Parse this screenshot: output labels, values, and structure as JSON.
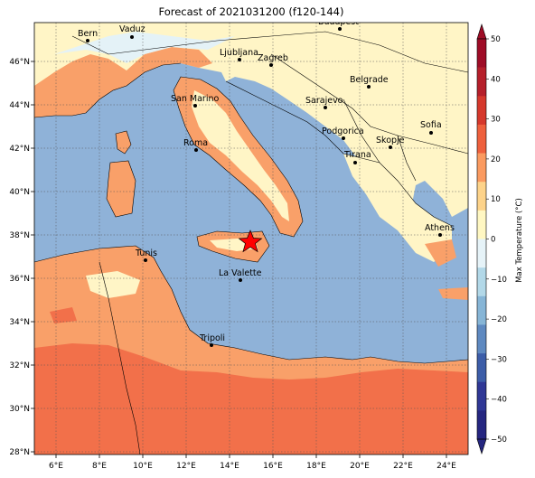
{
  "title": "Forecast of 2021031200 (f120-144)",
  "colorbar": {
    "label": "Max Temperature (°C)",
    "ticks": [
      "50",
      "40",
      "30",
      "20",
      "10",
      "0",
      "−10",
      "−20",
      "−30",
      "−40",
      "−50"
    ],
    "colors": [
      "#9e0c26",
      "#b51f2a",
      "#d5382c",
      "#ee603d",
      "#fa9a60",
      "#fdd38a",
      "#fff7c2",
      "#e6f3f8",
      "#b2d8e8",
      "#86b5d6",
      "#5e89c0",
      "#3c5da8",
      "#2f3795",
      "#252680"
    ]
  },
  "lon_ticks": [
    "6°E",
    "8°E",
    "10°E",
    "12°E",
    "14°E",
    "16°E",
    "18°E",
    "20°E",
    "22°E",
    "24°E"
  ],
  "lat_ticks": [
    "46°N",
    "44°N",
    "42°N",
    "40°N",
    "38°N",
    "36°N",
    "34°N",
    "32°N",
    "30°N",
    "28°N"
  ],
  "cities": [
    {
      "name": "Bern"
    },
    {
      "name": "Vaduz"
    },
    {
      "name": "Budapest"
    },
    {
      "name": "Ljubljana"
    },
    {
      "name": "Zagreb"
    },
    {
      "name": "Belgrade"
    },
    {
      "name": "San Marino"
    },
    {
      "name": "Sarajevo"
    },
    {
      "name": "Sofia"
    },
    {
      "name": "Podgorica"
    },
    {
      "name": "Skopje"
    },
    {
      "name": "Roma"
    },
    {
      "name": "Tirana"
    },
    {
      "name": "Athens"
    },
    {
      "name": "Tunis"
    },
    {
      "name": "La Valette"
    },
    {
      "name": "Tripoli"
    }
  ],
  "marker": {
    "type": "star",
    "color": "#ff0000"
  },
  "colors": {
    "sea": "#8fb2d8",
    "land_warm": "#fff5c6",
    "land_mid": "#f9a069",
    "land_hot": "#f2704a",
    "cold": "#e4f2f7"
  }
}
